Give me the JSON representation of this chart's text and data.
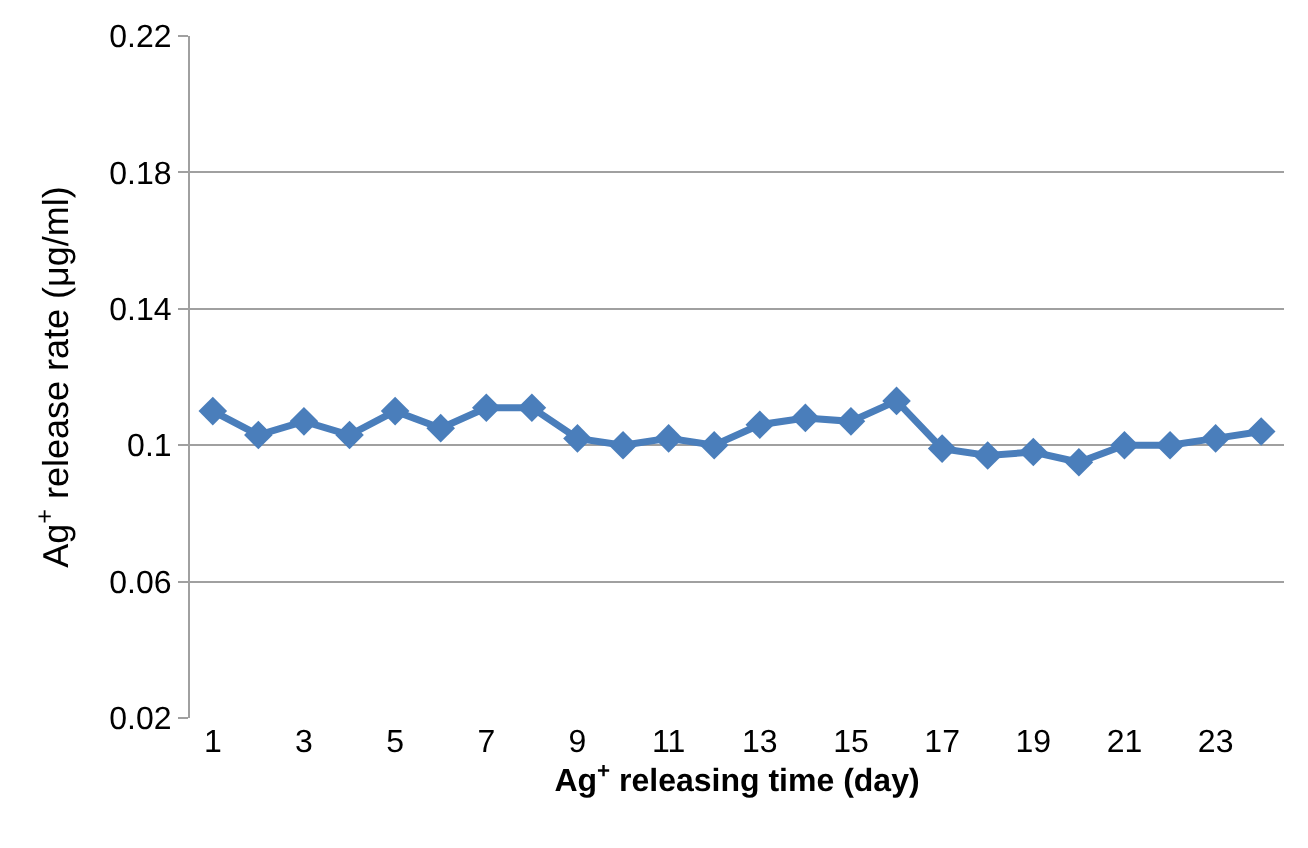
{
  "chart_data": {
    "type": "line",
    "xlabel": "Ag$^{+}$ releasing time (day)",
    "ylabel": "Ag$^{+}$ release rate (μg/ml)",
    "x": [
      1,
      2,
      3,
      4,
      5,
      6,
      7,
      8,
      9,
      10,
      11,
      12,
      13,
      14,
      15,
      16,
      17,
      18,
      19,
      20,
      21,
      22,
      23,
      24
    ],
    "xlim": [
      0.5,
      24.5
    ],
    "xticks": [
      1,
      3,
      5,
      7,
      9,
      11,
      13,
      15,
      17,
      19,
      21,
      23
    ],
    "series": [
      {
        "color": "#4a7ebb",
        "values": [
          0.11,
          0.103,
          0.107,
          0.103,
          0.11,
          0.105,
          0.111,
          0.111,
          0.102,
          0.1,
          0.102,
          0.1,
          0.106,
          0.108,
          0.107,
          0.113,
          0.099,
          0.097,
          0.098,
          0.095,
          0.1,
          0.1,
          0.102,
          0.104
        ]
      }
    ],
    "ylim": [
      0.02,
      0.22
    ],
    "yticks": [
      0.02,
      0.06,
      0.1,
      0.14,
      0.18,
      0.22
    ],
    "grid": "y",
    "marker": "diamond",
    "line_style": "solid"
  }
}
